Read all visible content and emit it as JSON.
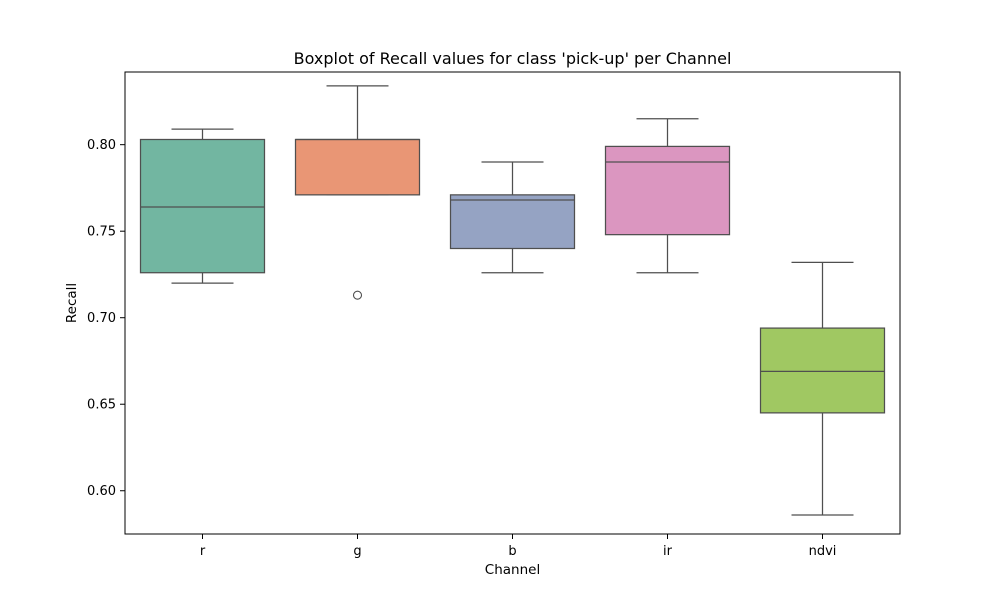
{
  "chart_data": {
    "type": "boxplot",
    "title": "Boxplot of Recall values for class 'pick-up' per Channel",
    "xlabel": "Channel",
    "ylabel": "Recall",
    "ylim": [
      0.575,
      0.842
    ],
    "yticks": [
      "0.60",
      "0.65",
      "0.70",
      "0.75",
      "0.80"
    ],
    "grid": false,
    "legend": "none",
    "categories": [
      "r",
      "g",
      "b",
      "ir",
      "ndvi"
    ],
    "series": [
      {
        "category": "r",
        "whisker_low": 0.72,
        "q1": 0.726,
        "median": 0.764,
        "q3": 0.803,
        "whisker_high": 0.809,
        "outliers": [],
        "color": "#72b6a1"
      },
      {
        "category": "g",
        "whisker_low": 0.771,
        "q1": 0.771,
        "median": 0.803,
        "q3": 0.803,
        "whisker_high": 0.834,
        "outliers": [
          0.713
        ],
        "color": "#e99675"
      },
      {
        "category": "b",
        "whisker_low": 0.726,
        "q1": 0.74,
        "median": 0.768,
        "q3": 0.771,
        "whisker_high": 0.79,
        "outliers": [],
        "color": "#95a3c3"
      },
      {
        "category": "ir",
        "whisker_low": 0.726,
        "q1": 0.748,
        "median": 0.79,
        "q3": 0.799,
        "whisker_high": 0.815,
        "outliers": [],
        "color": "#db96c0"
      },
      {
        "category": "ndvi",
        "whisker_low": 0.586,
        "q1": 0.645,
        "median": 0.669,
        "q3": 0.694,
        "whisker_high": 0.732,
        "outliers": [],
        "color": "#a0c862"
      }
    ]
  }
}
